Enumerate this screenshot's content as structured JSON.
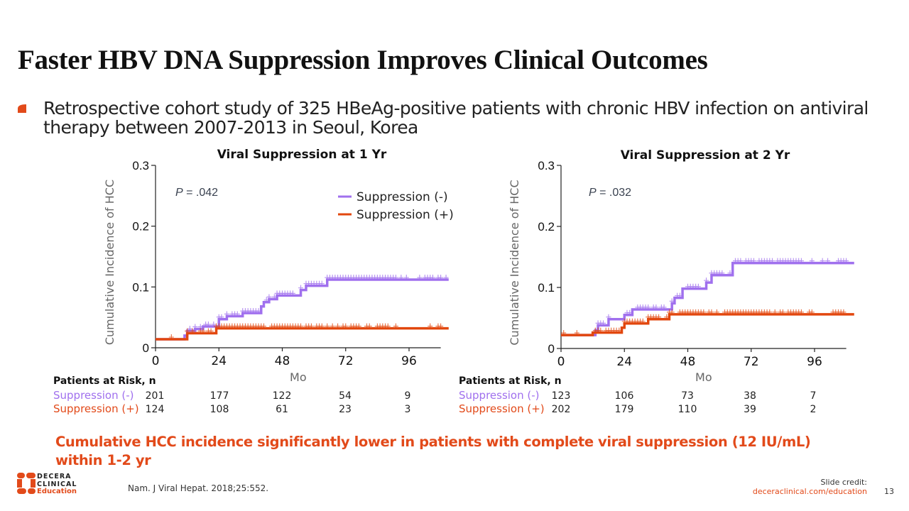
{
  "slide": {
    "title": "Faster HBV DNA Suppression Improves Clinical Outcomes",
    "bullet": "Retrospective cohort study of 325 HBeAg-positive patients with chronic HBV infection on antiviral therapy between 2007-2013 in Seoul, Korea",
    "conclusion": "Cumulative HCC incidence significantly lower in patients with complete viral suppression (12 IU/mL) within 1-2 yr",
    "citation": "Nam. J Viral Hepat. 2018;25:552.",
    "credit_label": "Slide credit:",
    "credit_url": "deceraclinical.com/education",
    "page_number": "13",
    "logo": {
      "line1": "DECERA",
      "line2": "CLINICAL",
      "line3": "Education"
    },
    "colors": {
      "accent": "#e24a1a",
      "suppression_neg": "#a070ee",
      "suppression_pos": "#e2470e"
    }
  },
  "risk_tables": [
    {
      "title": "Patients at Risk, n",
      "rows": [
        {
          "label": "Suppression (-)",
          "values": [
            "201",
            "177",
            "122",
            "54",
            "9"
          ]
        },
        {
          "label": "Suppression (+)",
          "values": [
            "124",
            "108",
            "61",
            "23",
            "3"
          ]
        }
      ]
    },
    {
      "title": "Patients at Risk, n",
      "rows": [
        {
          "label": "Suppression (-)",
          "values": [
            "123",
            "106",
            "73",
            "38",
            "7"
          ]
        },
        {
          "label": "Suppression (+)",
          "values": [
            "202",
            "179",
            "110",
            "39",
            "2"
          ]
        }
      ]
    }
  ],
  "chart_data": [
    {
      "type": "line",
      "step": true,
      "title": "Viral Suppression at 1 Yr",
      "xlabel": "Mo",
      "ylabel": "Cumulative Incidence of HCC",
      "xlim": [
        0,
        108
      ],
      "ylim": [
        0,
        0.3
      ],
      "xticks": [
        0,
        24,
        48,
        72,
        96
      ],
      "xtick_labels": [
        "0",
        "24",
        "48",
        "72",
        "96"
      ],
      "yticks": [
        0,
        0.1,
        0.2,
        0.3
      ],
      "ytick_labels": [
        "0",
        "0.1",
        "0.2",
        "0.3"
      ],
      "annotation": "P = .042",
      "legend": [
        "Suppression (-)",
        "Suppression (+)"
      ],
      "legend_position": "top-right",
      "grid": false,
      "series": [
        {
          "name": "Suppression (-)",
          "color": "#a070ee",
          "x": [
            0,
            10,
            11,
            12,
            15,
            18,
            24,
            27,
            33,
            40,
            41,
            43,
            46,
            55,
            57,
            65,
            111
          ],
          "y": [
            0.014,
            0.014,
            0.02,
            0.028,
            0.031,
            0.035,
            0.047,
            0.052,
            0.057,
            0.068,
            0.075,
            0.08,
            0.086,
            0.095,
            0.102,
            0.112,
            0.112
          ],
          "censor_x": [
            13,
            15,
            17,
            19,
            20,
            22,
            24,
            25,
            27,
            29,
            30,
            31,
            33,
            34,
            35,
            36,
            37,
            38,
            39,
            42,
            43,
            45,
            46,
            47,
            48,
            49,
            50,
            51,
            52,
            55,
            57,
            58,
            59,
            60,
            61,
            62,
            63,
            65,
            66,
            67,
            68,
            69,
            70,
            71,
            72,
            73,
            74,
            75,
            76,
            77,
            78,
            79,
            80,
            81,
            82,
            83,
            84,
            85,
            86,
            87,
            88,
            89,
            90,
            91,
            93,
            95,
            100,
            102,
            103,
            104,
            105,
            107,
            108,
            110
          ]
        },
        {
          "name": "Suppression (+)",
          "color": "#e2470e",
          "x": [
            0,
            10,
            12,
            22,
            23,
            111
          ],
          "y": [
            0.014,
            0.014,
            0.024,
            0.024,
            0.032,
            0.032
          ],
          "censor_x": [
            6,
            12,
            14,
            17,
            18,
            20,
            21,
            23,
            24,
            25,
            26,
            27,
            28,
            29,
            30,
            31,
            32,
            33,
            34,
            35,
            36,
            37,
            38,
            39,
            40,
            41,
            44,
            45,
            46,
            47,
            48,
            49,
            50,
            51,
            52,
            53,
            54,
            55,
            57,
            58,
            59,
            61,
            62,
            63,
            65,
            67,
            69,
            71,
            72,
            74,
            75,
            76,
            77,
            80,
            81,
            84,
            85,
            86,
            87,
            88,
            91,
            104,
            107,
            108
          ]
        }
      ],
      "risk_table_ref": 0
    },
    {
      "type": "line",
      "step": true,
      "title": "Viral Suppression at 2 Yr",
      "xlabel": "Mo",
      "ylabel": "Cumulative Incidence of HCC",
      "xlim": [
        0,
        108
      ],
      "ylim": [
        0,
        0.3
      ],
      "xticks": [
        0,
        24,
        48,
        72,
        96
      ],
      "xtick_labels": [
        "0",
        "24",
        "48",
        "72",
        "96"
      ],
      "yticks": [
        0,
        0.1,
        0.2,
        0.3
      ],
      "ytick_labels": [
        "0",
        "0.1",
        "0.2",
        "0.3"
      ],
      "annotation": "P = .032",
      "legend": [],
      "grid": false,
      "series": [
        {
          "name": "Suppression (-)",
          "color": "#a070ee",
          "x": [
            0,
            12,
            13,
            14,
            18,
            24,
            27,
            41,
            42,
            43,
            46,
            54,
            55,
            57,
            65,
            111
          ],
          "y": [
            0.022,
            0.022,
            0.03,
            0.038,
            0.048,
            0.055,
            0.064,
            0.064,
            0.074,
            0.083,
            0.098,
            0.098,
            0.108,
            0.12,
            0.14,
            0.14
          ],
          "censor_x": [
            14,
            15,
            16,
            18,
            25,
            26,
            29,
            30,
            31,
            32,
            33,
            35,
            36,
            38,
            39,
            42,
            44,
            45,
            48,
            49,
            50,
            51,
            52,
            55,
            57,
            58,
            59,
            60,
            61,
            64,
            66,
            67,
            68,
            70,
            71,
            72,
            73,
            75,
            76,
            77,
            78,
            79,
            80,
            82,
            83,
            84,
            85,
            86,
            87,
            88,
            89,
            90,
            91,
            95,
            99,
            101,
            105,
            106,
            107,
            108
          ]
        },
        {
          "name": "Suppression (+)",
          "color": "#e2470e",
          "x": [
            0,
            10,
            12,
            23,
            24,
            33,
            41,
            111
          ],
          "y": [
            0.022,
            0.022,
            0.026,
            0.034,
            0.041,
            0.048,
            0.056,
            0.056
          ],
          "censor_x": [
            1,
            6,
            13,
            14,
            15,
            17,
            18,
            19,
            20,
            21,
            22,
            24,
            25,
            26,
            27,
            28,
            29,
            30,
            31,
            33,
            34,
            35,
            36,
            37,
            40,
            41,
            42,
            45,
            46,
            47,
            48,
            49,
            50,
            51,
            52,
            53,
            54,
            56,
            57,
            59,
            62,
            63,
            64,
            65,
            66,
            67,
            68,
            69,
            70,
            71,
            72,
            73,
            74,
            75,
            76,
            77,
            78,
            79,
            81,
            83,
            84,
            86,
            87,
            88,
            89,
            90,
            91,
            94,
            95,
            103,
            104,
            105,
            106,
            107
          ]
        }
      ],
      "risk_table_ref": 1
    }
  ]
}
